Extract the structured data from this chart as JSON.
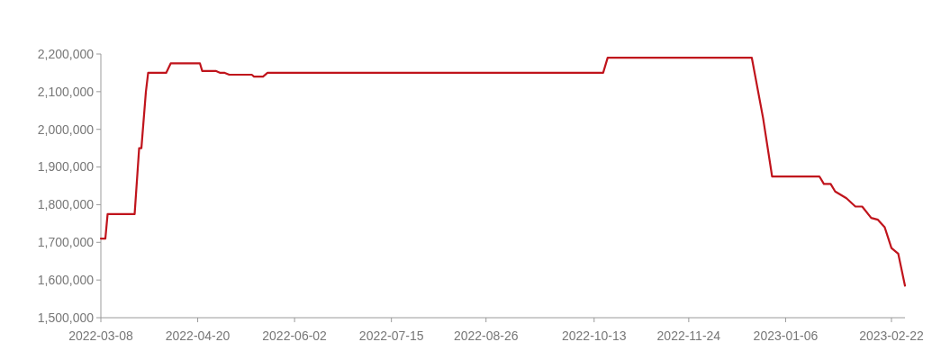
{
  "chart_data": {
    "type": "line",
    "x": [
      "2022-03-08",
      "2022-03-10",
      "2022-03-11",
      "2022-03-23",
      "2022-03-25",
      "2022-03-26",
      "2022-03-28",
      "2022-03-29",
      "2022-04-06",
      "2022-04-08",
      "2022-04-21",
      "2022-04-22",
      "2022-04-28",
      "2022-04-30",
      "2022-05-02",
      "2022-05-04",
      "2022-05-14",
      "2022-05-15",
      "2022-05-19",
      "2022-05-21",
      "2022-10-17",
      "2022-10-19",
      "2022-12-22",
      "2022-12-27",
      "2022-12-31",
      "2023-01-21",
      "2023-01-23",
      "2023-01-26",
      "2023-01-28",
      "2023-02-02",
      "2023-02-06",
      "2023-02-09",
      "2023-02-13",
      "2023-02-16",
      "2023-02-19",
      "2023-02-22",
      "2023-02-25",
      "2023-02-28"
    ],
    "series": [
      {
        "color": "#c0141c",
        "values": [
          1710000,
          1710000,
          1775000,
          1775000,
          1950000,
          1950000,
          2100000,
          2150000,
          2150000,
          2175000,
          2175000,
          2155000,
          2155000,
          2150000,
          2150000,
          2145000,
          2145000,
          2140000,
          2140000,
          2150000,
          2150000,
          2190000,
          2190000,
          2030000,
          1875000,
          1875000,
          1855000,
          1855000,
          1835000,
          1817000,
          1795000,
          1795000,
          1765000,
          1760000,
          1740000,
          1685000,
          1670000,
          1585000
        ]
      }
    ],
    "xlim": [
      "2022-03-08",
      "2023-02-28"
    ],
    "xticks": [
      "2022-03-08",
      "2022-04-20",
      "2022-06-02",
      "2022-07-15",
      "2022-08-26",
      "2022-10-13",
      "2022-11-24",
      "2023-01-06",
      "2023-02-22"
    ],
    "ylim": [
      1500000,
      2200000
    ],
    "yticks": [
      {
        "value": 1500000,
        "label": "1,500,000"
      },
      {
        "value": 1600000,
        "label": "1,600,000"
      },
      {
        "value": 1700000,
        "label": "1,700,000"
      },
      {
        "value": 1800000,
        "label": "1,800,000"
      },
      {
        "value": 1900000,
        "label": "1,900,000"
      },
      {
        "value": 2000000,
        "label": "2,000,000"
      },
      {
        "value": 2100000,
        "label": "2,100,000"
      },
      {
        "value": 2200000,
        "label": "2,200,000"
      }
    ],
    "grid": false,
    "marker": "none",
    "line_style": "solid"
  }
}
